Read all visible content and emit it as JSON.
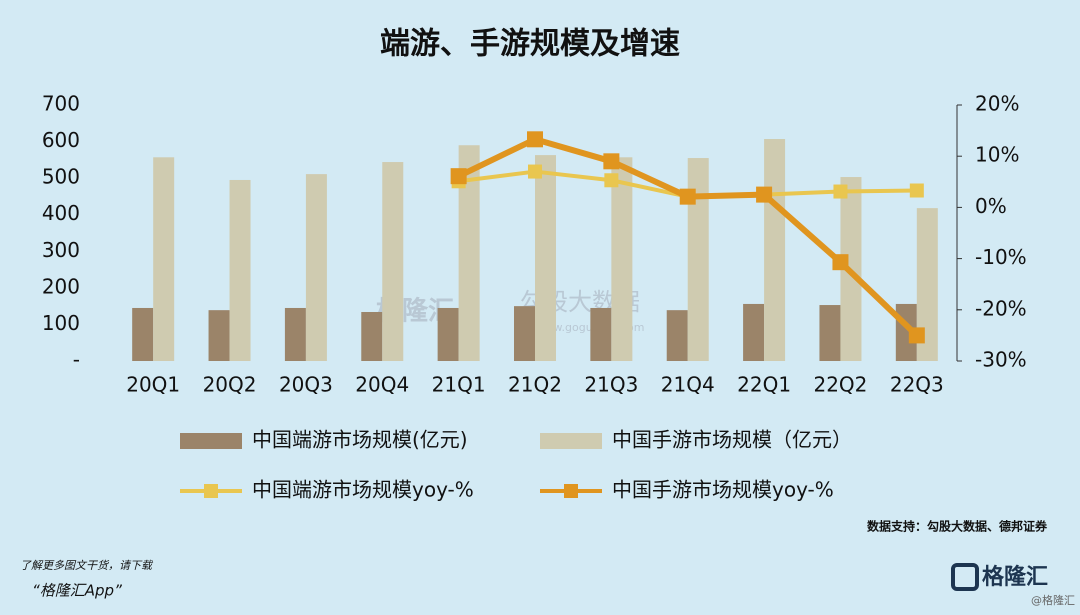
{
  "chart_data": {
    "type": "bar",
    "title": "端游、手游规模及增速",
    "categories": [
      "20Q1",
      "20Q2",
      "20Q3",
      "20Q4",
      "21Q1",
      "21Q2",
      "21Q3",
      "21Q4",
      "22Q1",
      "22Q2",
      "22Q3"
    ],
    "series": [
      {
        "name": "中国端游市场规模(亿元)",
        "type": "bar",
        "color": "#9b8469",
        "values": [
          145,
          139,
          145,
          134,
          145,
          150,
          145,
          139,
          156,
          153,
          156
        ]
      },
      {
        "name": "中国手游市场规模（亿元）",
        "type": "bar",
        "color": "#cfcbb0",
        "values": [
          557,
          495,
          511,
          544,
          590,
          563,
          557,
          555,
          607,
          503,
          418
        ]
      },
      {
        "name": "中国端游市场规模yoy-%",
        "type": "line",
        "axis": "y2",
        "color": "#e9c64f",
        "values": [
          null,
          null,
          null,
          null,
          5.1,
          7.0,
          5.3,
          2.1,
          2.5,
          3.1,
          3.3
        ]
      },
      {
        "name": "中国手游市场规模yoy-%",
        "type": "line",
        "axis": "y2",
        "color": "#e0951f",
        "values": [
          null,
          null,
          null,
          null,
          6.1,
          13.3,
          9.0,
          2.1,
          2.5,
          -10.7,
          -25.0
        ]
      }
    ],
    "ylim": [
      0,
      700
    ],
    "yticks": [
      {
        "value": 0,
        "label": "-"
      },
      100,
      200,
      300,
      400,
      500,
      600,
      700
    ],
    "y2lim": [
      -30,
      20
    ],
    "y2ticks": [
      {
        "value": -30,
        "label": "-30%"
      },
      {
        "value": -20,
        "label": "-20%"
      },
      {
        "value": -10,
        "label": "-10%"
      },
      {
        "value": 0,
        "label": "0%"
      },
      {
        "value": 10,
        "label": "10%"
      },
      {
        "value": 20,
        "label": "20%"
      }
    ],
    "source": "数据支持：勾股大数据、德邦证券",
    "watermark": {
      "brand": "格隆汇",
      "name": "勾股大数据",
      "url": "www.gogudata.com"
    }
  },
  "footer": {
    "line1": "了解更多图文干货，请下载",
    "line2": "“格隆汇App”",
    "logo": "格隆汇",
    "handle": "@格隆汇"
  }
}
